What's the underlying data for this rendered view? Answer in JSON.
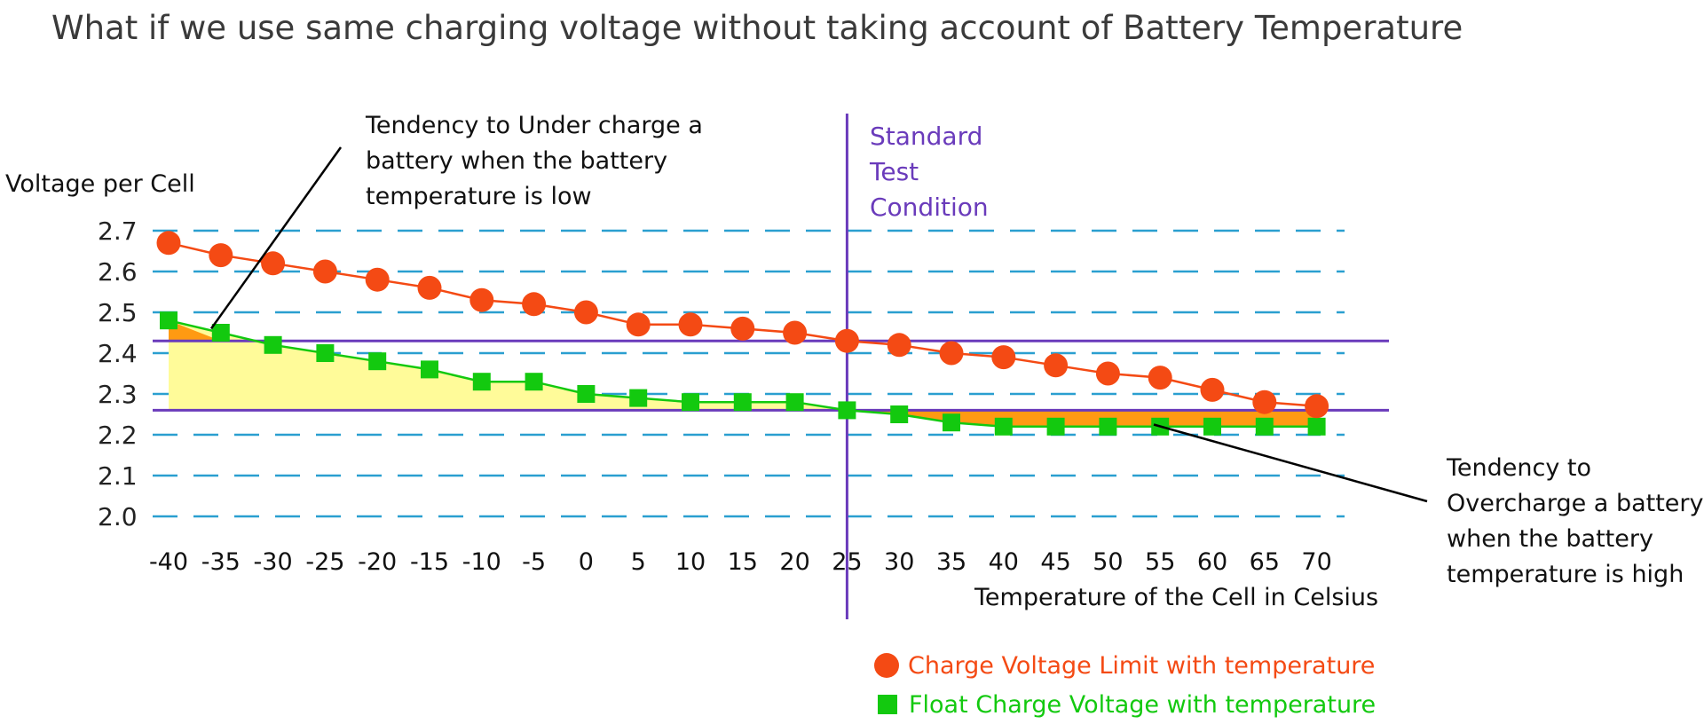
{
  "chart_data": {
    "type": "line",
    "title": "What if we use same charging voltage without taking account of Battery Temperature",
    "ylabel": "Voltage per Cell",
    "xlabel": "Temperature of the Cell in Celsius",
    "x": [
      -40,
      -35,
      -30,
      -25,
      -20,
      -15,
      -10,
      -5,
      0,
      5,
      10,
      15,
      20,
      25,
      30,
      35,
      40,
      45,
      50,
      55,
      60,
      65,
      70
    ],
    "yticks": [
      "2.7",
      "2.6",
      "2.5",
      "2.4",
      "2.3",
      "2.2",
      "2.1",
      "2.0"
    ],
    "ylim": [
      2.0,
      2.7
    ],
    "grid": "horizontal dashed",
    "series": [
      {
        "name": "Charge Voltage Limit with temperature",
        "marker": "circle",
        "color": "#f44a14",
        "values": [
          2.67,
          2.64,
          2.62,
          2.6,
          2.58,
          2.56,
          2.53,
          2.52,
          2.5,
          2.47,
          2.47,
          2.46,
          2.45,
          2.43,
          2.42,
          2.4,
          2.39,
          2.37,
          2.35,
          2.34,
          2.31,
          2.28,
          2.27
        ]
      },
      {
        "name": "Float Charge Voltage with temperature",
        "marker": "square",
        "color": "#13c90f",
        "values": [
          2.48,
          2.45,
          2.42,
          2.4,
          2.38,
          2.36,
          2.33,
          2.33,
          2.3,
          2.29,
          2.28,
          2.28,
          2.28,
          2.26,
          2.25,
          2.23,
          2.22,
          2.22,
          2.22,
          2.22,
          2.22,
          2.22,
          2.22
        ]
      }
    ],
    "reference_lines": {
      "vertical_x": 25,
      "vertical_label": [
        "Standard",
        "Test",
        "Condition"
      ],
      "horizontal_y": [
        2.43,
        2.26
      ],
      "color": "#6a3bbb"
    },
    "annotations": {
      "under_charge": [
        "Tendency to Under charge a",
        "battery when the battery",
        "temperature is low"
      ],
      "over_charge": [
        "Tendency to",
        "Overcharge a battery",
        "when the battery",
        "temperature is high"
      ]
    },
    "legend": "bottom-center",
    "colors": {
      "grid": "#2a9fd0",
      "under_fill": "#fffb99",
      "over_fill": "#ff9a12"
    }
  }
}
